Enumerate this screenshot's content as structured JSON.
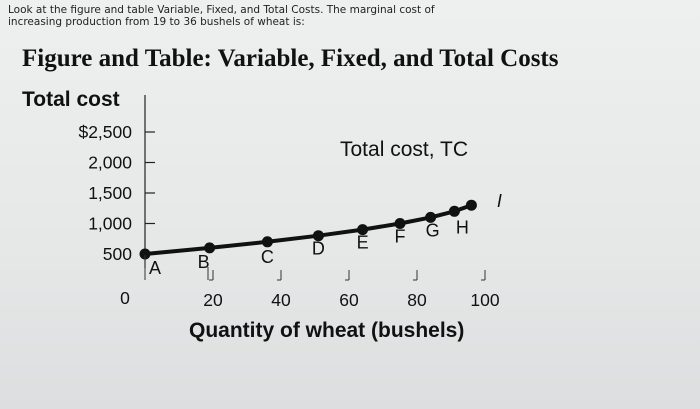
{
  "question_text": "Look at the figure and table Variable, Fixed, and Total Costs. The marginal cost of increasing production from 19 to 36 bushels of wheat is:",
  "figure_title": "Figure and Table: Variable, Fixed, and Total Costs",
  "colors": {
    "line": "#111111",
    "background": "#eceeee"
  },
  "chart_data": {
    "type": "line",
    "ylabel": "Total cost",
    "xlabel": "Quantity of wheat (bushels)",
    "series_label": "Total cost, TC",
    "xlim": [
      0,
      100
    ],
    "ylim": [
      0,
      2500
    ],
    "x_ticks": [
      "20",
      "40",
      "60",
      "80",
      "100"
    ],
    "x_tick_values": [
      20,
      40,
      60,
      80,
      100
    ],
    "x_zero_label": "0",
    "y_ticks": [
      "$2,500",
      "2,000",
      "1,500",
      "1,000",
      "500"
    ],
    "y_tick_values": [
      2500,
      2000,
      1500,
      1000,
      500
    ],
    "points": [
      {
        "label": "A",
        "x": 0,
        "y": 500
      },
      {
        "label": "B",
        "x": 19,
        "y": 600
      },
      {
        "label": "C",
        "x": 36,
        "y": 700
      },
      {
        "label": "D",
        "x": 51,
        "y": 800
      },
      {
        "label": "E",
        "x": 64,
        "y": 900
      },
      {
        "label": "F",
        "x": 75,
        "y": 1000
      },
      {
        "label": "G",
        "x": 84,
        "y": 1100
      },
      {
        "label": "H",
        "x": 91,
        "y": 1200
      },
      {
        "label": "I",
        "x": 96,
        "y": 1300
      }
    ]
  }
}
